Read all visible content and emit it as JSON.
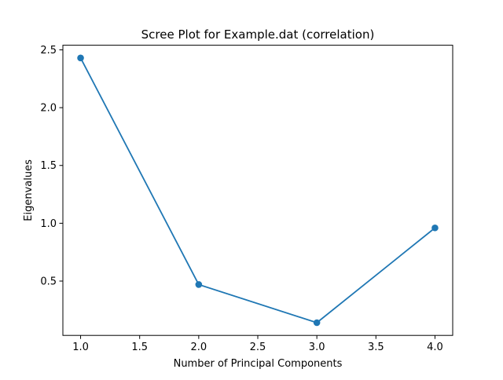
{
  "chart_data": {
    "type": "line",
    "title": "Scree Plot for Example.dat (correlation)",
    "xlabel": "Number of Principal Components",
    "ylabel": "Eigenvalues",
    "xlim": [
      0.85,
      4.15
    ],
    "ylim": [
      0.03,
      2.54
    ],
    "xticks": [
      1.0,
      1.5,
      2.0,
      2.5,
      3.0,
      3.5,
      4.0
    ],
    "xtick_labels": [
      "1.0",
      "1.5",
      "2.0",
      "2.5",
      "3.0",
      "3.5",
      "4.0"
    ],
    "yticks": [
      0.5,
      1.0,
      1.5,
      2.0,
      2.5
    ],
    "ytick_labels": [
      "0.5",
      "1.0",
      "1.5",
      "2.0",
      "2.5"
    ],
    "grid": false,
    "markers": true,
    "series": [
      {
        "color": "#1f77b4",
        "x": [
          1,
          2,
          3,
          4
        ],
        "values": [
          2.43,
          0.47,
          0.14,
          0.96
        ]
      }
    ]
  }
}
